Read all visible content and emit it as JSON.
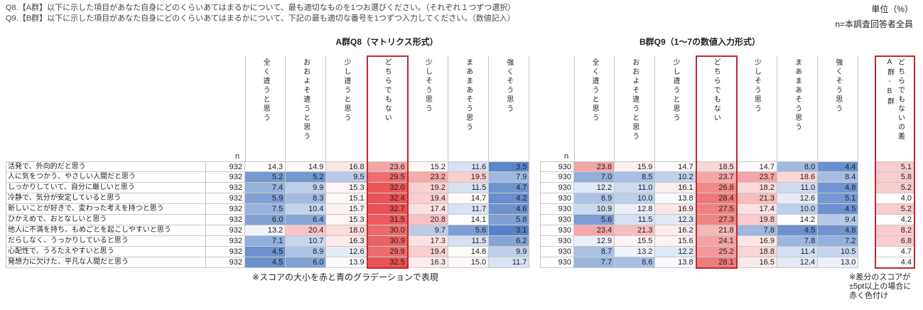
{
  "header": {
    "q8": "Q8.【A群】以下に示した項目があなた自身にどのくらいあてはまるかについて、最も適切なものを1つお選びください。（それぞれ１つずつ選択）",
    "q9": "Q9.【B群】以下に示した項目があなた自身にどのくらいあてはまるかについて、下記の最も適切な番号を1つずつ入力してください。（数値記入）",
    "unit": "単位（%）",
    "base": "n=本調査回答者全員"
  },
  "table": {
    "group_a_title": "A群Q8（マトリクス形式）",
    "group_b_title": "B群Q9（1～7の数値入力形式）",
    "n_label": "n",
    "columns": [
      "全く違うと思う",
      "おおよそ違うと思う",
      "少し違うと思う",
      "どちらでもない",
      "少しそう思う",
      "まあまあそう思う",
      "強くそう思う"
    ],
    "diff_header": [
      "A群-B群",
      "どちらでもないの差"
    ],
    "rows": [
      {
        "label": "活発で、外向的だと思う",
        "a_n": "932",
        "a": [
          "14.3",
          "14.9",
          "16.8",
          "23.6",
          "15.2",
          "11.6",
          "3.5"
        ],
        "b_n": "930",
        "b": [
          "23.8",
          "15.9",
          "14.7",
          "18.5",
          "14.7",
          "8.0",
          "4.4"
        ],
        "diff": "5.1"
      },
      {
        "label": "人に気をつかう、やさしい人間だと思う",
        "a_n": "932",
        "a": [
          "5.2",
          "5.2",
          "9.5",
          "29.5",
          "23.2",
          "19.5",
          "7.9"
        ],
        "b_n": "930",
        "b": [
          "7.0",
          "8.5",
          "10.2",
          "23.7",
          "23.7",
          "18.6",
          "8.4"
        ],
        "diff": "5.8"
      },
      {
        "label": "しっかりしていて、自分に厳しいと思う",
        "a_n": "932",
        "a": [
          "7.4",
          "9.9",
          "15.3",
          "32.0",
          "19.2",
          "11.5",
          "4.7"
        ],
        "b_n": "930",
        "b": [
          "12.2",
          "11.0",
          "16.1",
          "26.8",
          "18.2",
          "11.0",
          "4.8"
        ],
        "diff": "5.2"
      },
      {
        "label": "冷静で、気分が安定していると思う",
        "a_n": "932",
        "a": [
          "5.9",
          "8.3",
          "15.1",
          "32.4",
          "19.4",
          "14.7",
          "4.2"
        ],
        "b_n": "930",
        "b": [
          "8.9",
          "10.0",
          "13.8",
          "28.4",
          "21.3",
          "12.6",
          "5.1"
        ],
        "diff": "4.0"
      },
      {
        "label": "新しいことが好きで、変わった考えを持つと思う",
        "a_n": "932",
        "a": [
          "7.5",
          "10.4",
          "15.7",
          "32.7",
          "17.4",
          "11.7",
          "4.6"
        ],
        "b_n": "930",
        "b": [
          "10.9",
          "12.8",
          "16.9",
          "27.5",
          "17.4",
          "10.0",
          "4.5"
        ],
        "diff": "5.2"
      },
      {
        "label": "ひかえめで、おとなしいと思う",
        "a_n": "932",
        "a": [
          "6.0",
          "6.4",
          "15.3",
          "31.5",
          "20.8",
          "14.1",
          "5.8"
        ],
        "b_n": "930",
        "b": [
          "5.6",
          "11.5",
          "12.3",
          "27.3",
          "19.8",
          "14.2",
          "9.4"
        ],
        "diff": "4.2"
      },
      {
        "label": "他人に不満を持ち、もめごとを起こしやすいと思う",
        "a_n": "932",
        "a": [
          "13.2",
          "20.4",
          "18.0",
          "30.0",
          "9.7",
          "5.6",
          "3.1"
        ],
        "b_n": "930",
        "b": [
          "23.4",
          "21.3",
          "16.2",
          "21.8",
          "7.8",
          "4.5",
          "4.8"
        ],
        "diff": "8.2"
      },
      {
        "label": "だらしなく、うっかりしていると思う",
        "a_n": "932",
        "a": [
          "7.1",
          "10.7",
          "16.3",
          "30.9",
          "17.3",
          "11.5",
          "6.2"
        ],
        "b_n": "930",
        "b": [
          "12.9",
          "15.5",
          "15.6",
          "24.1",
          "16.9",
          "7.8",
          "7.2"
        ],
        "diff": "6.8"
      },
      {
        "label": "心配性で、うろたえやすいと思う",
        "a_n": "932",
        "a": [
          "4.5",
          "8.9",
          "12.6",
          "29.9",
          "19.4",
          "14.8",
          "9.9"
        ],
        "b_n": "930",
        "b": [
          "8.7",
          "13.2",
          "12.2",
          "25.2",
          "18.8",
          "11.4",
          "10.5"
        ],
        "diff": "4.7"
      },
      {
        "label": "発想力に欠けた、平凡な人間だと思う",
        "a_n": "932",
        "a": [
          "4.5",
          "6.0",
          "13.9",
          "32.5",
          "16.3",
          "15.0",
          "11.7"
        ],
        "b_n": "930",
        "b": [
          "7.7",
          "8.6",
          "13.8",
          "28.1",
          "16.5",
          "12.4",
          "13.0"
        ],
        "diff": "4.4"
      }
    ]
  },
  "notes": {
    "gradient": "※スコアの大小を赤と青のグラデーションで表現",
    "diff": "※差分のスコアが±5pt以上の場合に赤く色付け"
  },
  "diff_highlight_min": 5
}
